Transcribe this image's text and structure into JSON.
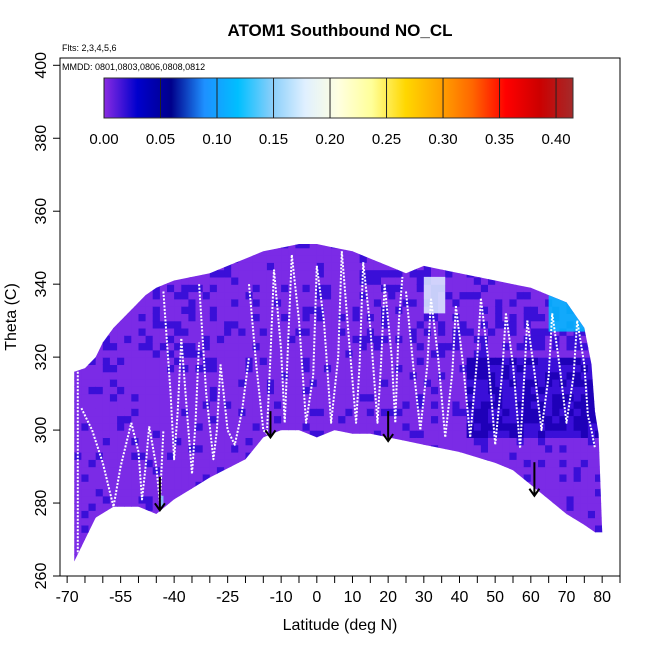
{
  "chart_data": {
    "type": "heatmap",
    "title": "ATOM1 Southbound NO_CL",
    "flights_note": "Flts: 2,3,4,5,6",
    "mmdd_note": "MMDD: 0801,0803,0806,0808,0812",
    "xlabel": "Latitude (deg N)",
    "ylabel": "Theta (C)",
    "xlim": [
      -72,
      85
    ],
    "ylim": [
      260,
      402
    ],
    "x_ticks_major": [
      -70,
      -55,
      -40,
      -25,
      -10,
      0,
      10,
      20,
      30,
      40,
      50,
      60,
      70,
      80
    ],
    "x_ticks_all": [
      -70,
      -65,
      -60,
      -55,
      -50,
      -45,
      -40,
      -35,
      -30,
      -25,
      -20,
      -15,
      -10,
      -5,
      0,
      5,
      10,
      15,
      20,
      25,
      30,
      35,
      40,
      45,
      50,
      55,
      60,
      65,
      70,
      75,
      80,
      85
    ],
    "y_ticks": [
      260,
      280,
      300,
      320,
      340,
      360,
      380,
      400
    ],
    "colorbar": {
      "range": [
        0,
        0.415
      ],
      "ticks": [
        0.0,
        0.05,
        0.1,
        0.15,
        0.2,
        0.25,
        0.3,
        0.35,
        0.4
      ],
      "tick_labels": [
        "0.00",
        "0.05",
        "0.10",
        "0.15",
        "0.20",
        "0.25",
        "0.30",
        "0.35",
        "0.40"
      ],
      "colors": [
        "#8a2be2",
        "#0000cd",
        "#00008b",
        "#1e90ff",
        "#00bfff",
        "#87cefa",
        "#e0f0ff",
        "#ffffe0",
        "#ffff99",
        "#ffd700",
        "#ffa500",
        "#ff6600",
        "#ff0000",
        "#cc0000",
        "#a52a2a"
      ]
    },
    "field_colors": {
      "low": "#7b2be6",
      "mid": "#3a0fd8",
      "dark": "#1e00b8",
      "high": "#1f8fff"
    },
    "envelope_top": [
      [
        -68,
        316
      ],
      [
        -65,
        317
      ],
      [
        -62,
        320
      ],
      [
        -60,
        324
      ],
      [
        -57,
        328
      ],
      [
        -54,
        331
      ],
      [
        -51,
        334
      ],
      [
        -48,
        337
      ],
      [
        -45,
        339
      ],
      [
        -40,
        341
      ],
      [
        -35,
        342
      ],
      [
        -30,
        343
      ],
      [
        -25,
        345
      ],
      [
        -20,
        347
      ],
      [
        -15,
        349
      ],
      [
        -10,
        350
      ],
      [
        -5,
        351
      ],
      [
        0,
        351
      ],
      [
        5,
        350
      ],
      [
        10,
        349
      ],
      [
        15,
        347
      ],
      [
        20,
        345
      ],
      [
        25,
        343
      ],
      [
        30,
        345
      ],
      [
        35,
        344
      ],
      [
        40,
        343
      ],
      [
        45,
        342
      ],
      [
        50,
        341
      ],
      [
        55,
        340
      ],
      [
        60,
        339
      ],
      [
        65,
        337
      ],
      [
        70,
        335
      ],
      [
        75,
        328
      ],
      [
        77,
        318
      ],
      [
        78,
        305
      ],
      [
        79,
        299
      ]
    ],
    "envelope_bottom": [
      [
        -68,
        264
      ],
      [
        -65,
        270
      ],
      [
        -62,
        276
      ],
      [
        -57,
        279
      ],
      [
        -50,
        279
      ],
      [
        -45,
        277
      ],
      [
        -40,
        281
      ],
      [
        -35,
        284
      ],
      [
        -30,
        287
      ],
      [
        -20,
        292
      ],
      [
        -15,
        298
      ],
      [
        -10,
        300
      ],
      [
        -5,
        300
      ],
      [
        0,
        298
      ],
      [
        5,
        300
      ],
      [
        10,
        299
      ],
      [
        15,
        299
      ],
      [
        20,
        298
      ],
      [
        25,
        297
      ],
      [
        30,
        296
      ],
      [
        40,
        294
      ],
      [
        50,
        291
      ],
      [
        55,
        289
      ],
      [
        60,
        285
      ],
      [
        65,
        281
      ],
      [
        70,
        277
      ],
      [
        75,
        274
      ],
      [
        78,
        272
      ],
      [
        80,
        272
      ]
    ],
    "high_patches": [
      {
        "lat": [
          65,
          78
        ],
        "theta": [
          327,
          339
        ],
        "value": 0.12
      },
      {
        "lat": [
          30,
          36
        ],
        "theta": [
          332,
          342
        ],
        "value": 0.18
      },
      {
        "lat": [
          -44,
          -43
        ],
        "theta": [
          279,
          282
        ],
        "value": 0.16
      }
    ],
    "profiles": [
      {
        "lat": [
          -67,
          -67
        ],
        "theta": [
          316,
          266
        ]
      },
      {
        "lat": [
          -66,
          -63,
          -60,
          -58,
          -57,
          -55,
          -52
        ],
        "theta": [
          306,
          300,
          291,
          283,
          279,
          290,
          302
        ]
      },
      {
        "lat": [
          -52,
          -50,
          -49,
          -48,
          -47
        ],
        "theta": [
          302,
          294,
          281,
          290,
          301
        ]
      },
      {
        "lat": [
          -47,
          -45,
          -44,
          -43
        ],
        "theta": [
          301,
          290,
          280,
          300
        ]
      },
      {
        "lat": [
          -43,
          -41,
          -40,
          -39,
          -38
        ],
        "theta": [
          338,
          310,
          292,
          305,
          325
        ]
      },
      {
        "lat": [
          -38,
          -36,
          -35,
          -34,
          -33
        ],
        "theta": [
          325,
          300,
          288,
          302,
          324
        ]
      },
      {
        "lat": [
          -33,
          -31,
          -29,
          -28,
          -27
        ],
        "theta": [
          340,
          310,
          292,
          300,
          318
        ]
      },
      {
        "lat": [
          -27,
          -25,
          -23,
          -21,
          -19
        ],
        "theta": [
          318,
          300,
          296,
          305,
          320
        ]
      },
      {
        "lat": [
          -19,
          -17,
          -15,
          -14,
          -13,
          -12
        ],
        "theta": [
          340,
          318,
          300,
          299,
          320,
          344
        ]
      },
      {
        "lat": [
          -12,
          -10,
          -9,
          -8,
          -7
        ],
        "theta": [
          344,
          322,
          302,
          325,
          348
        ]
      },
      {
        "lat": [
          -7,
          -5,
          -3,
          -1,
          0
        ],
        "theta": [
          348,
          330,
          302,
          315,
          345
        ]
      },
      {
        "lat": [
          0,
          2,
          4,
          6,
          7
        ],
        "theta": [
          345,
          330,
          302,
          320,
          349
        ]
      },
      {
        "lat": [
          7,
          9,
          11,
          12,
          13
        ],
        "theta": [
          349,
          325,
          302,
          318,
          346
        ]
      },
      {
        "lat": [
          13,
          15,
          17,
          18,
          19
        ],
        "theta": [
          346,
          328,
          302,
          318,
          340
        ]
      },
      {
        "lat": [
          19,
          21,
          22,
          23,
          24
        ],
        "theta": [
          340,
          320,
          302,
          330,
          342
        ]
      },
      {
        "lat": [
          25,
          27,
          29,
          31,
          32
        ],
        "theta": [
          338,
          318,
          300,
          318,
          336
        ]
      },
      {
        "lat": [
          32,
          34,
          36,
          38,
          39
        ],
        "theta": [
          336,
          320,
          298,
          316,
          334
        ]
      },
      {
        "lat": [
          39,
          41,
          43,
          45,
          46
        ],
        "theta": [
          334,
          318,
          298,
          320,
          336
        ]
      },
      {
        "lat": [
          46,
          48,
          50,
          52,
          53
        ],
        "theta": [
          336,
          320,
          296,
          316,
          332
        ]
      },
      {
        "lat": [
          53,
          55,
          57,
          58,
          59
        ],
        "theta": [
          332,
          318,
          295,
          312,
          330
        ]
      },
      {
        "lat": [
          59,
          61,
          63,
          65,
          66
        ],
        "theta": [
          330,
          316,
          300,
          315,
          332
        ]
      },
      {
        "lat": [
          66,
          68,
          70,
          72,
          73
        ],
        "theta": [
          332,
          318,
          302,
          315,
          330
        ]
      },
      {
        "lat": [
          73,
          75,
          76,
          77,
          78
        ],
        "theta": [
          330,
          318,
          304,
          300,
          295
        ]
      }
    ],
    "arrows": [
      {
        "lat": -44,
        "theta_top": 285,
        "theta_tip": 278
      },
      {
        "lat": -13,
        "theta_top": 303,
        "theta_tip": 298
      },
      {
        "lat": 20,
        "theta_top": 303,
        "theta_tip": 297
      },
      {
        "lat": 61,
        "theta_top": 289,
        "theta_tip": 282
      }
    ]
  }
}
